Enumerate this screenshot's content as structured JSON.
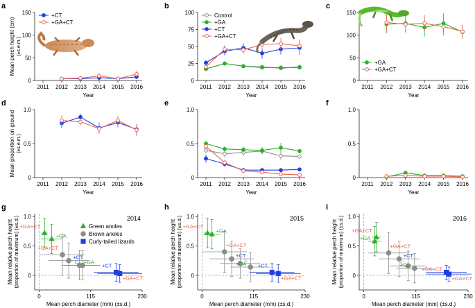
{
  "colors": {
    "control": "#8c8c8c",
    "ga": "#2ab02a",
    "ct": "#1f3fe0",
    "gact": "#f2604a",
    "axis": "#222222",
    "grid": "#9a9a9a"
  },
  "chart_data": [
    {
      "id": "a",
      "label": "a",
      "type": "line",
      "ylabel": "Mean perch height (cm)",
      "ylabel2": "(±s.e.m.)",
      "xlabel": "Year",
      "x": [
        2011,
        2012,
        2013,
        2014,
        2015,
        2016
      ],
      "ylim": [
        0,
        150
      ],
      "yticks": [
        0,
        50,
        100,
        150
      ],
      "legend": [
        {
          "name": "+CT",
          "key": "ct",
          "marker": "filled"
        },
        {
          "name": "+GA+CT",
          "key": "gact",
          "marker": "open"
        }
      ],
      "series": [
        {
          "name": "+CT",
          "key": "ct",
          "marker": "filled",
          "values": [
            null,
            4,
            4,
            6,
            4,
            8
          ],
          "err": [
            0,
            2,
            2,
            4,
            2,
            5
          ]
        },
        {
          "name": "+GA+CT",
          "key": "gact",
          "marker": "open",
          "values": [
            null,
            4,
            5,
            10,
            4,
            14
          ],
          "err": [
            0,
            2,
            3,
            5,
            2,
            8
          ]
        }
      ]
    },
    {
      "id": "b",
      "label": "b",
      "type": "line",
      "ylabel": "",
      "ylabel2": "",
      "xlabel": "Year",
      "x": [
        2011,
        2012,
        2013,
        2014,
        2015,
        2016
      ],
      "ylim": [
        0,
        100
      ],
      "yticks": [
        0,
        25,
        50,
        75,
        100
      ],
      "legend": [
        {
          "name": "Control",
          "key": "control",
          "marker": "open"
        },
        {
          "name": "+GA",
          "key": "ga",
          "marker": "filled"
        },
        {
          "name": "+CT",
          "key": "ct",
          "marker": "filled"
        },
        {
          "name": "+GA+CT",
          "key": "gact",
          "marker": "open"
        }
      ],
      "series": [
        {
          "name": "Control",
          "key": "control",
          "marker": "open",
          "values": [
            17,
            25,
            21,
            20,
            18,
            20
          ],
          "err": [
            2,
            2,
            2,
            2,
            2,
            2
          ]
        },
        {
          "name": "+GA",
          "key": "ga",
          "marker": "filled",
          "values": [
            17,
            25,
            21,
            19,
            19,
            19
          ],
          "err": [
            2,
            2,
            2,
            2,
            2,
            2
          ]
        },
        {
          "name": "+CT",
          "key": "ct",
          "marker": "filled",
          "values": [
            26,
            43,
            48,
            40,
            46,
            48
          ],
          "err": [
            4,
            6,
            7,
            8,
            8,
            10
          ]
        },
        {
          "name": "+GA+CT",
          "key": "gact",
          "marker": "open",
          "values": [
            20,
            46,
            45,
            53,
            54,
            51
          ],
          "err": [
            3,
            6,
            6,
            7,
            9,
            9
          ]
        }
      ]
    },
    {
      "id": "c",
      "label": "c",
      "type": "line",
      "ylabel": "",
      "ylabel2": "",
      "xlabel": "Year",
      "x": [
        2011,
        2012,
        2013,
        2014,
        2015,
        2016
      ],
      "ylim": [
        0,
        150
      ],
      "yticks": [
        0,
        50,
        100,
        150
      ],
      "legend": [
        {
          "name": "+GA",
          "key": "ga",
          "marker": "filled"
        },
        {
          "name": "+GA+CT",
          "key": "gact",
          "marker": "open"
        }
      ],
      "series": [
        {
          "name": "+GA",
          "key": "ga",
          "marker": "filled",
          "values": [
            null,
            124,
            126,
            117,
            126,
            107
          ],
          "err": [
            0,
            20,
            20,
            20,
            22,
            15
          ]
        },
        {
          "name": "+GA+CT",
          "key": "gact",
          "marker": "open",
          "values": [
            null,
            128,
            124,
            126,
            119,
            108
          ],
          "err": [
            0,
            18,
            18,
            18,
            20,
            15
          ]
        }
      ]
    },
    {
      "id": "d",
      "label": "d",
      "type": "line",
      "ylabel": "Mean proportion on ground",
      "ylabel2": "(±s.e.m.)",
      "xlabel": "Year",
      "x": [
        2011,
        2012,
        2013,
        2014,
        2015,
        2016
      ],
      "ylim": [
        0,
        1.0
      ],
      "yticks": [
        0,
        0.5,
        1.0
      ],
      "yticklabels": [
        "0",
        "0.5",
        "1.0"
      ],
      "legend": [],
      "series": [
        {
          "name": "+CT",
          "key": "ct",
          "marker": "filled",
          "values": [
            null,
            0.8,
            0.89,
            0.73,
            0.81,
            0.71
          ],
          "err": [
            0,
            0.07,
            0.05,
            0.08,
            0.07,
            0.08
          ]
        },
        {
          "name": "+GA+CT",
          "key": "gact",
          "marker": "open",
          "values": [
            null,
            0.84,
            0.82,
            0.72,
            0.84,
            0.7
          ],
          "err": [
            0,
            0.08,
            0.05,
            0.08,
            0.07,
            0.09
          ]
        }
      ]
    },
    {
      "id": "e",
      "label": "e",
      "type": "line",
      "ylabel": "",
      "ylabel2": "",
      "xlabel": "Year",
      "x": [
        2011,
        2012,
        2013,
        2014,
        2015,
        2016
      ],
      "ylim": [
        0,
        1.0
      ],
      "yticks": [
        0,
        0.5,
        1.0
      ],
      "yticklabels": [
        "0",
        "0.5",
        "1.0"
      ],
      "legend": [],
      "series": [
        {
          "name": "Control",
          "key": "control",
          "marker": "open",
          "values": [
            0.4,
            0.35,
            0.37,
            0.39,
            0.32,
            0.31
          ],
          "err": [
            0.04,
            0.05,
            0.05,
            0.05,
            0.06,
            0.04
          ]
        },
        {
          "name": "+GA",
          "key": "ga",
          "marker": "filled",
          "values": [
            0.5,
            0.42,
            0.41,
            0.4,
            0.44,
            0.39
          ],
          "err": [
            0.04,
            0.04,
            0.05,
            0.05,
            0.07,
            0.03
          ]
        },
        {
          "name": "+CT",
          "key": "ct",
          "marker": "filled",
          "values": [
            0.28,
            0.2,
            0.11,
            0.11,
            0.11,
            0.12
          ],
          "err": [
            0.06,
            0.04,
            0.03,
            0.03,
            0.03,
            0.03
          ]
        },
        {
          "name": "+GA+CT",
          "key": "gact",
          "marker": "open",
          "values": [
            0.46,
            0.22,
            0.1,
            0.08,
            0.05,
            0.04
          ],
          "err": [
            0.05,
            0.04,
            0.03,
            0.02,
            0.02,
            0.02
          ]
        }
      ]
    },
    {
      "id": "f",
      "label": "f",
      "type": "line",
      "ylabel": "",
      "ylabel2": "",
      "xlabel": "Year",
      "x": [
        2011,
        2012,
        2013,
        2014,
        2015,
        2016
      ],
      "ylim": [
        0,
        1.0
      ],
      "yticks": [
        0,
        0.5,
        1.0
      ],
      "yticklabels": [
        "0",
        "0.5",
        "1.0"
      ],
      "legend": [],
      "series": [
        {
          "name": "+GA",
          "key": "ga",
          "marker": "filled",
          "values": [
            null,
            0.01,
            0.07,
            0.03,
            0.03,
            0.02
          ],
          "err": [
            0,
            0.01,
            0.03,
            0.02,
            0.02,
            0.01
          ]
        },
        {
          "name": "+GA+CT",
          "key": "gact",
          "marker": "open",
          "values": [
            null,
            0.02,
            0.03,
            0.02,
            0.02,
            0.01
          ],
          "err": [
            0,
            0.01,
            0.02,
            0.01,
            0.01,
            0.01
          ]
        }
      ]
    },
    {
      "id": "g",
      "label": "g",
      "type": "scatter",
      "year_label": "2014",
      "ylabel": "Mean relative perch height",
      "ylabel2": "(proportion of maximum) (±s.d.)",
      "xlabel": "Mean perch diameter (mm) (±s.d.)",
      "xlim": [
        -10,
        230
      ],
      "xticks": [
        0,
        115,
        230
      ],
      "ylim": [
        -0.25,
        1.05
      ],
      "yticks": [
        0,
        0.5,
        1.0
      ],
      "yticklabels": [
        "0",
        "0.5",
        "1.0"
      ],
      "legend": [
        {
          "name": "Green anoles",
          "shape": "triangle",
          "key": "ga"
        },
        {
          "name": "Brown anoles",
          "shape": "circle",
          "key": "control"
        },
        {
          "name": "Curly-tailed lizards",
          "shape": "square",
          "key": "ct"
        }
      ],
      "points": [
        {
          "shape": "triangle",
          "key": "ga",
          "x": 12,
          "y": 0.72,
          "xerr": 7,
          "yerr": 0.25,
          "label": "+GA+CT",
          "label_key": "gact",
          "label_pos": "above-left"
        },
        {
          "shape": "triangle",
          "key": "ga",
          "x": 28,
          "y": 0.62,
          "xerr": 25,
          "yerr": 0.25,
          "label": "+GA",
          "label_key": "ga",
          "label_pos": "right"
        },
        {
          "shape": "circle",
          "key": "control",
          "x": 52,
          "y": 0.35,
          "xerr": 50,
          "yerr": 0.35,
          "label": "+GA+CT",
          "label_key": "gact",
          "label_pos": "above-left"
        },
        {
          "shape": "circle",
          "key": "control",
          "x": 66,
          "y": 0.25,
          "xerr": 45,
          "yerr": 0.3,
          "label": "+CT",
          "label_key": "ct",
          "label_pos": "right"
        },
        {
          "shape": "circle",
          "key": "control",
          "x": 90,
          "y": 0.17,
          "xerr": 40,
          "yerr": 0.25,
          "label": "+GA",
          "label_key": "ga",
          "label_pos": "right"
        },
        {
          "shape": "circle",
          "key": "control",
          "x": 97,
          "y": 0.17,
          "xerr": 40,
          "yerr": 0.25,
          "label": "C",
          "label_key": "control",
          "label_pos": "left"
        },
        {
          "shape": "square",
          "key": "ct",
          "x": 172,
          "y": 0.05,
          "xerr": 50,
          "yerr": 0.15,
          "label": "+CT",
          "label_key": "ct",
          "label_pos": "above-left"
        },
        {
          "shape": "square",
          "key": "ct",
          "x": 180,
          "y": 0.03,
          "xerr": 50,
          "yerr": 0.15,
          "label": "+GA+CT",
          "label_key": "gact",
          "label_pos": "below-right"
        }
      ]
    },
    {
      "id": "h",
      "label": "h",
      "type": "scatter",
      "year_label": "2015",
      "ylabel": "Mean relative perch height",
      "ylabel2": "(proportion of maximum) (±s.d.)",
      "xlabel": "Mean perch diameter (mm) (±s.d.)",
      "xlim": [
        -10,
        230
      ],
      "xticks": [
        0,
        115,
        230
      ],
      "ylim": [
        -0.25,
        1.05
      ],
      "yticks": [
        0,
        0.5,
        1.0
      ],
      "yticklabels": [
        "0",
        "0.5",
        "1.0"
      ],
      "legend": [],
      "points": [
        {
          "shape": "triangle",
          "key": "ga",
          "x": 12,
          "y": 0.72,
          "xerr": 8,
          "yerr": 0.25,
          "label": "+GA+CT",
          "label_key": "gact",
          "label_pos": "above-left"
        },
        {
          "shape": "triangle",
          "key": "ga",
          "x": 22,
          "y": 0.7,
          "xerr": 20,
          "yerr": 0.25,
          "label": "+GA",
          "label_key": "ga",
          "label_pos": "right"
        },
        {
          "shape": "circle",
          "key": "control",
          "x": 50,
          "y": 0.4,
          "xerr": 50,
          "yerr": 0.35,
          "label": "+GA+CT",
          "label_key": "gact",
          "label_pos": "above-right"
        },
        {
          "shape": "circle",
          "key": "control",
          "x": 66,
          "y": 0.28,
          "xerr": 50,
          "yerr": 0.3,
          "label": "+CT",
          "label_key": "ct",
          "label_pos": "right"
        },
        {
          "shape": "circle",
          "key": "control",
          "x": 85,
          "y": 0.2,
          "xerr": 45,
          "yerr": 0.25,
          "label": "C",
          "label_key": "control",
          "label_pos": "right"
        },
        {
          "shape": "circle",
          "key": "control",
          "x": 108,
          "y": 0.14,
          "xerr": 45,
          "yerr": 0.25,
          "label": "+GA",
          "label_key": "ga",
          "label_pos": "left"
        },
        {
          "shape": "square",
          "key": "ct",
          "x": 156,
          "y": 0.05,
          "xerr": 50,
          "yerr": 0.15,
          "label": "+CT",
          "label_key": "ct",
          "label_pos": "above-left"
        },
        {
          "shape": "square",
          "key": "ct",
          "x": 170,
          "y": 0.03,
          "xerr": 50,
          "yerr": 0.15,
          "label": "+GA+CT",
          "label_key": "gact",
          "label_pos": "below-right"
        }
      ]
    },
    {
      "id": "i",
      "label": "i",
      "type": "scatter",
      "year_label": "2016",
      "ylabel": "Mean relative perch height",
      "ylabel2": "(proportion of maximum) (±s.d.)",
      "xlabel": "Mean perch diameter (mm) (±s.d.)",
      "xlim": [
        -10,
        230
      ],
      "xticks": [
        0,
        115,
        230
      ],
      "ylim": [
        -0.25,
        1.05
      ],
      "yticks": [
        0,
        0.5,
        1.0
      ],
      "yticklabels": [
        "0",
        "0.5",
        "1.0"
      ],
      "legend": [],
      "points": [
        {
          "shape": "triangle",
          "key": "ga",
          "x": 28,
          "y": 0.65,
          "xerr": 10,
          "yerr": 0.25,
          "label": "+GA+CT",
          "label_key": "gact",
          "label_pos": "above-left"
        },
        {
          "shape": "triangle",
          "key": "ga",
          "x": 24,
          "y": 0.58,
          "xerr": 15,
          "yerr": 0.25,
          "label": "+GA",
          "label_key": "ga",
          "label_pos": "left"
        },
        {
          "shape": "circle",
          "key": "control",
          "x": 55,
          "y": 0.38,
          "xerr": 45,
          "yerr": 0.35,
          "label": "+GA+CT",
          "label_key": "gact",
          "label_pos": "above-right"
        },
        {
          "shape": "circle",
          "key": "control",
          "x": 78,
          "y": 0.28,
          "xerr": 45,
          "yerr": 0.3,
          "label": "+CT",
          "label_key": "ct",
          "label_pos": "right"
        },
        {
          "shape": "circle",
          "key": "control",
          "x": 98,
          "y": 0.16,
          "xerr": 40,
          "yerr": 0.25,
          "label": "C",
          "label_key": "control",
          "label_pos": "left"
        },
        {
          "shape": "circle",
          "key": "control",
          "x": 112,
          "y": 0.12,
          "xerr": 40,
          "yerr": 0.25,
          "label": "+GA",
          "label_key": "ga",
          "label_pos": "left"
        },
        {
          "shape": "square",
          "key": "ct",
          "x": 182,
          "y": 0.05,
          "xerr": 45,
          "yerr": 0.12,
          "label": "+GA+CT",
          "label_key": "gact",
          "label_pos": "left"
        },
        {
          "shape": "square",
          "key": "ct",
          "x": 188,
          "y": 0.02,
          "xerr": 50,
          "yerr": 0.12,
          "label": "+GA+CT",
          "label_key": "gact",
          "label_pos": "below-right"
        }
      ]
    }
  ]
}
